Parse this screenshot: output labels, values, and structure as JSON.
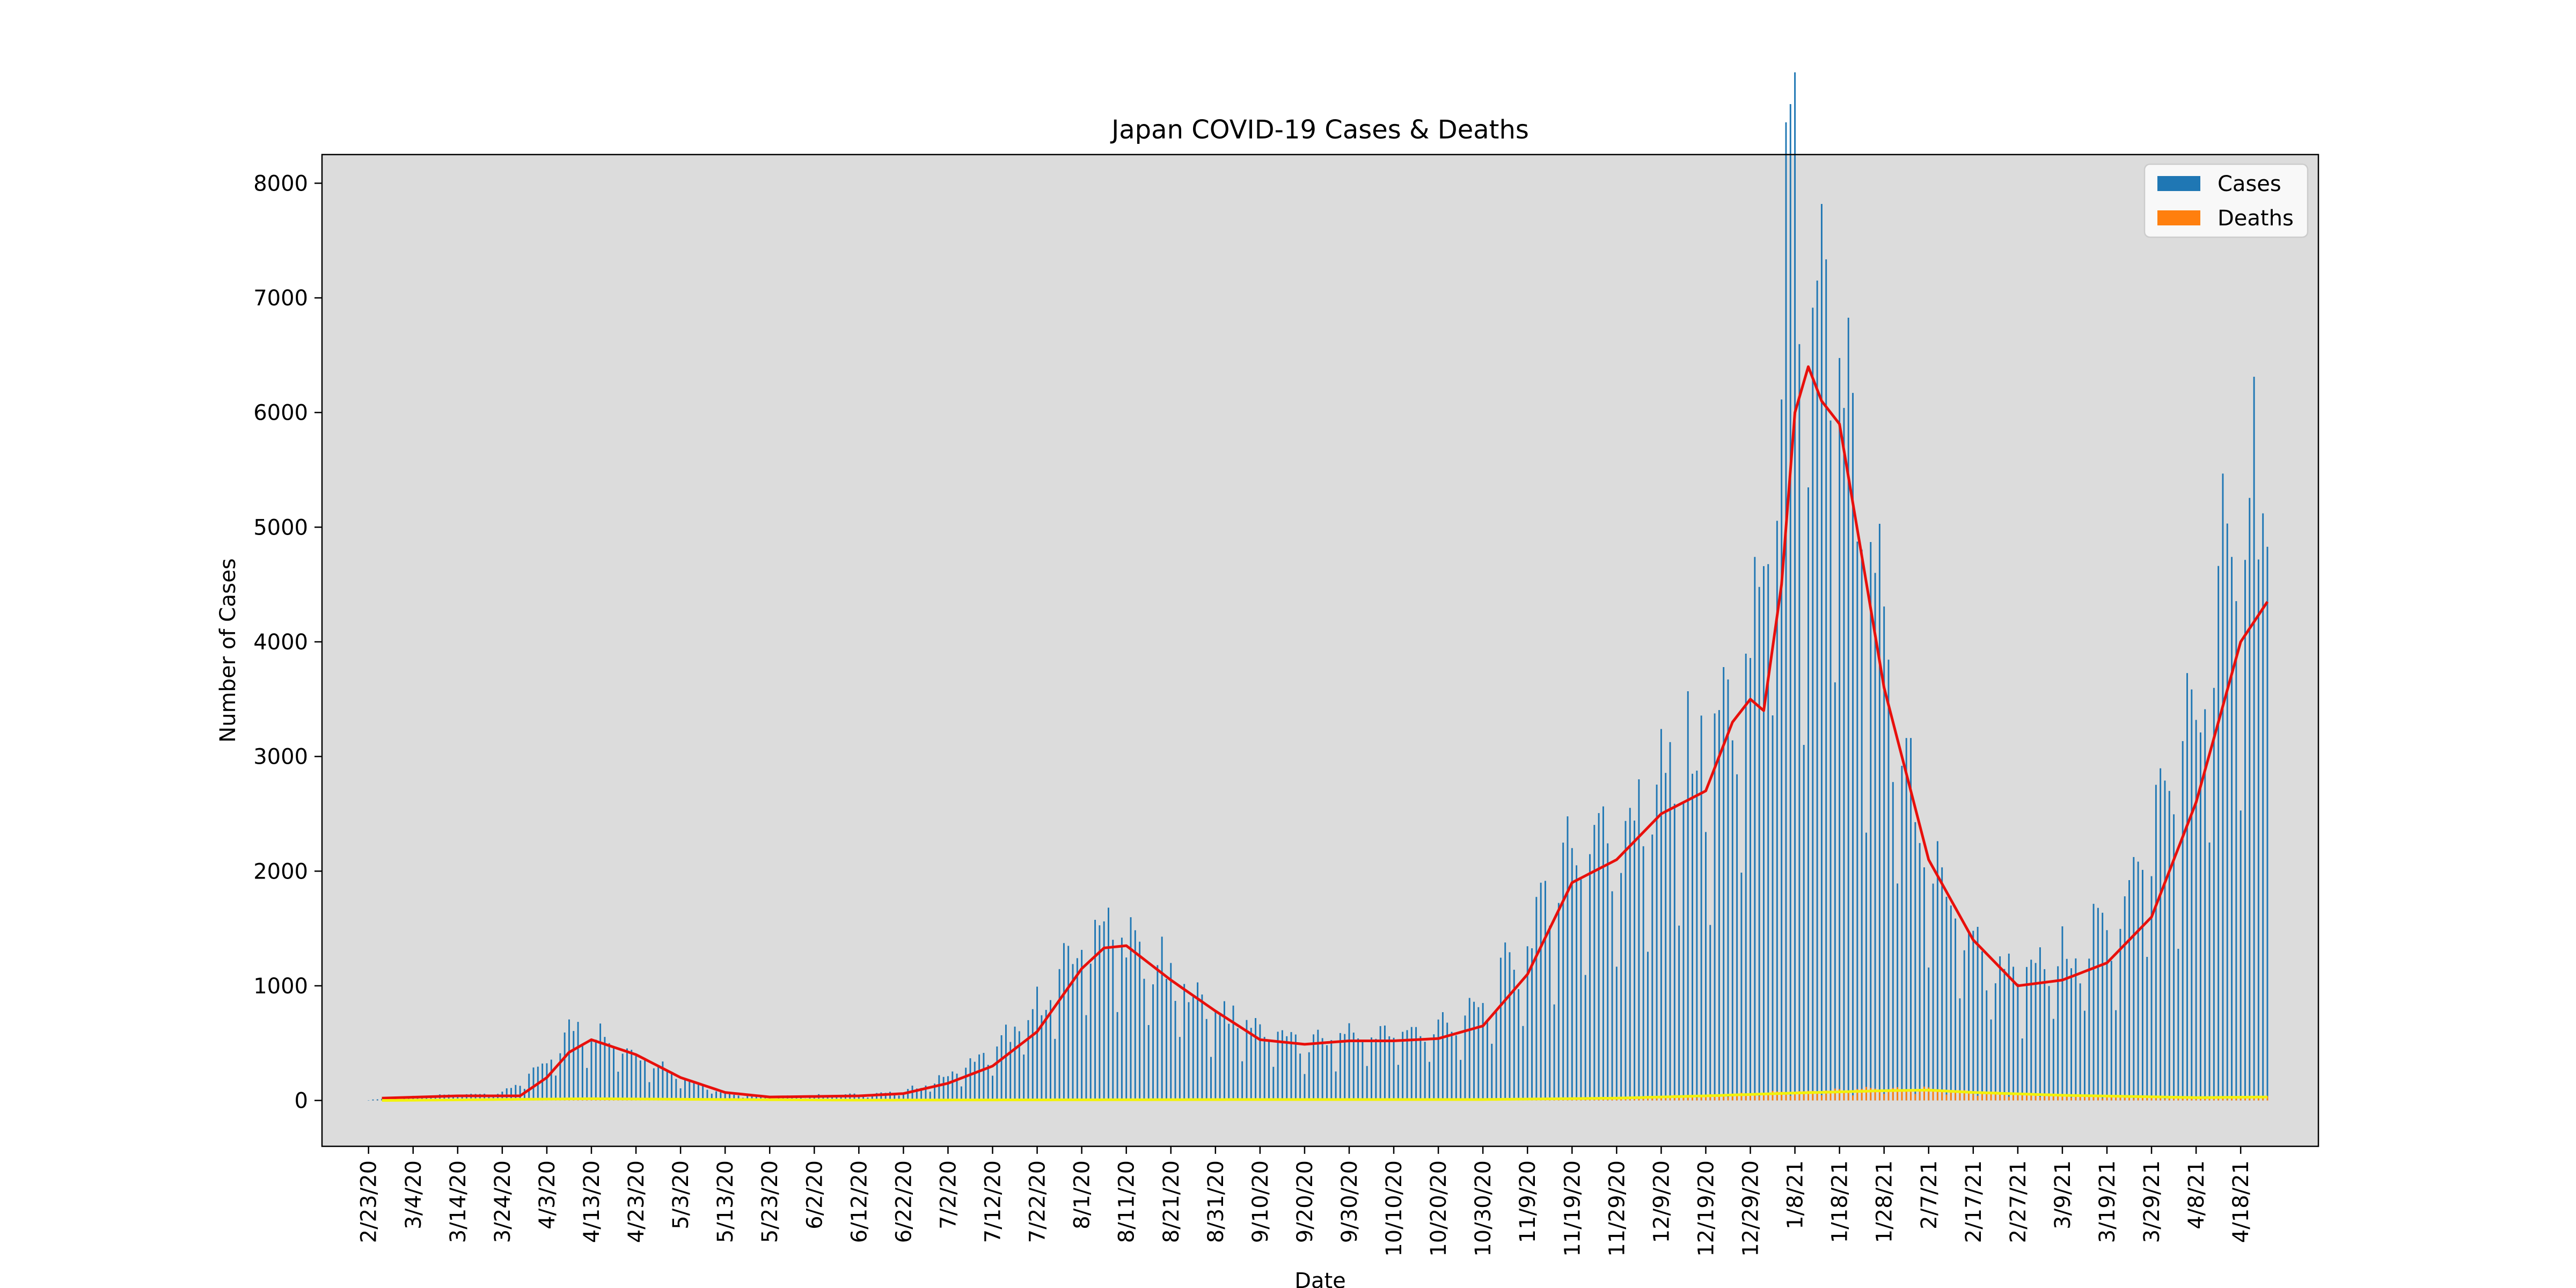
{
  "chart_data": {
    "type": "bar",
    "title": "Japan COVID-19 Cases & Deaths",
    "xlabel": "Date",
    "ylabel": "Number of Cases",
    "x_start": "2020-02-23",
    "x_end": "2021-04-24",
    "ylim": [
      -400,
      8250
    ],
    "yticks": [
      0,
      1000,
      2000,
      3000,
      4000,
      5000,
      6000,
      7000,
      8000
    ],
    "xtick_labels": [
      "2/23/20",
      "3/4/20",
      "3/14/20",
      "3/24/20",
      "4/3/20",
      "4/13/20",
      "4/23/20",
      "5/3/20",
      "5/13/20",
      "5/23/20",
      "6/2/20",
      "6/12/20",
      "6/22/20",
      "7/2/20",
      "7/12/20",
      "7/22/20",
      "8/1/20",
      "8/11/20",
      "8/21/20",
      "8/31/20",
      "9/10/20",
      "9/20/20",
      "9/30/20",
      "10/10/20",
      "10/20/20",
      "10/30/20",
      "11/9/20",
      "11/19/20",
      "11/29/20",
      "12/9/20",
      "12/19/20",
      "12/29/20",
      "1/8/21",
      "1/18/21",
      "1/28/21",
      "2/7/21",
      "2/17/21",
      "2/27/21",
      "3/9/21",
      "3/19/21",
      "3/29/21",
      "4/8/21",
      "4/18/21"
    ],
    "grid": false,
    "legend_position": "top-right",
    "legend": [
      {
        "label": "Cases",
        "color": "#1f77b4"
      },
      {
        "label": "Deaths",
        "color": "#ff7f0e"
      }
    ],
    "colors": {
      "plot_background": "#dcdcdc",
      "cases_bar": "#1f77b4",
      "deaths_bar": "#ff7f0e",
      "cases_rolling_line": "#e8100c",
      "deaths_rolling_line": "#f2f20c"
    },
    "series": [
      {
        "name": "Cases",
        "kind": "bar",
        "note": "daily values, piecewise-linear anchors (date, value) read from the chart",
        "points": [
          [
            "2020-02-23",
            5
          ],
          [
            "2020-03-04",
            30
          ],
          [
            "2020-03-14",
            50
          ],
          [
            "2020-03-24",
            60
          ],
          [
            "2020-04-03",
            300
          ],
          [
            "2020-04-10",
            650
          ],
          [
            "2020-04-13",
            550
          ],
          [
            "2020-04-23",
            400
          ],
          [
            "2020-05-03",
            200
          ],
          [
            "2020-05-13",
            60
          ],
          [
            "2020-05-23",
            30
          ],
          [
            "2020-06-02",
            40
          ],
          [
            "2020-06-12",
            50
          ],
          [
            "2020-06-22",
            70
          ],
          [
            "2020-07-02",
            200
          ],
          [
            "2020-07-12",
            400
          ],
          [
            "2020-07-22",
            750
          ],
          [
            "2020-08-01",
            1300
          ],
          [
            "2020-08-07",
            1500
          ],
          [
            "2020-08-11",
            1300
          ],
          [
            "2020-08-21",
            1000
          ],
          [
            "2020-08-31",
            750
          ],
          [
            "2020-09-10",
            600
          ],
          [
            "2020-09-20",
            450
          ],
          [
            "2020-09-30",
            550
          ],
          [
            "2020-10-10",
            550
          ],
          [
            "2020-10-20",
            600
          ],
          [
            "2020-10-30",
            750
          ],
          [
            "2020-11-09",
            1300
          ],
          [
            "2020-11-19",
            2100
          ],
          [
            "2020-11-29",
            2200
          ],
          [
            "2020-12-09",
            2600
          ],
          [
            "2020-12-19",
            2900
          ],
          [
            "2020-12-29",
            3500
          ],
          [
            "2021-01-06",
            6500
          ],
          [
            "2021-01-08",
            7800
          ],
          [
            "2021-01-10",
            5200
          ],
          [
            "2021-01-14",
            6800
          ],
          [
            "2021-01-18",
            5800
          ],
          [
            "2021-01-28",
            3600
          ],
          [
            "2021-02-07",
            2000
          ],
          [
            "2021-02-17",
            1300
          ],
          [
            "2021-02-27",
            1000
          ],
          [
            "2021-03-09",
            1200
          ],
          [
            "2021-03-19",
            1400
          ],
          [
            "2021-03-29",
            2200
          ],
          [
            "2021-04-08",
            3200
          ],
          [
            "2021-04-18",
            4800
          ],
          [
            "2021-04-24",
            5200
          ]
        ]
      },
      {
        "name": "Deaths",
        "kind": "bar",
        "note": "daily values, piecewise-linear anchors (date, value) read from the chart",
        "points": [
          [
            "2020-02-23",
            0
          ],
          [
            "2020-04-13",
            20
          ],
          [
            "2020-05-03",
            15
          ],
          [
            "2020-06-12",
            3
          ],
          [
            "2020-08-11",
            8
          ],
          [
            "2020-09-10",
            10
          ],
          [
            "2020-10-30",
            8
          ],
          [
            "2020-11-29",
            25
          ],
          [
            "2020-12-19",
            45
          ],
          [
            "2021-01-08",
            70
          ],
          [
            "2021-01-28",
            95
          ],
          [
            "2021-02-07",
            100
          ],
          [
            "2021-02-17",
            70
          ],
          [
            "2021-03-09",
            45
          ],
          [
            "2021-04-08",
            20
          ],
          [
            "2021-04-24",
            30
          ]
        ]
      },
      {
        "name": "Cases 7-day average",
        "kind": "line",
        "points": [
          [
            "2020-02-26",
            20
          ],
          [
            "2020-03-14",
            40
          ],
          [
            "2020-03-28",
            40
          ],
          [
            "2020-04-03",
            200
          ],
          [
            "2020-04-08",
            420
          ],
          [
            "2020-04-13",
            530
          ],
          [
            "2020-04-23",
            400
          ],
          [
            "2020-05-03",
            200
          ],
          [
            "2020-05-13",
            70
          ],
          [
            "2020-05-23",
            30
          ],
          [
            "2020-06-02",
            35
          ],
          [
            "2020-06-12",
            40
          ],
          [
            "2020-06-22",
            60
          ],
          [
            "2020-07-02",
            150
          ],
          [
            "2020-07-12",
            300
          ],
          [
            "2020-07-22",
            600
          ],
          [
            "2020-08-01",
            1150
          ],
          [
            "2020-08-06",
            1330
          ],
          [
            "2020-08-11",
            1350
          ],
          [
            "2020-08-21",
            1050
          ],
          [
            "2020-08-31",
            780
          ],
          [
            "2020-09-10",
            530
          ],
          [
            "2020-09-20",
            490
          ],
          [
            "2020-09-30",
            520
          ],
          [
            "2020-10-10",
            520
          ],
          [
            "2020-10-20",
            540
          ],
          [
            "2020-10-30",
            650
          ],
          [
            "2020-11-09",
            1100
          ],
          [
            "2020-11-19",
            1900
          ],
          [
            "2020-11-29",
            2100
          ],
          [
            "2020-12-09",
            2500
          ],
          [
            "2020-12-19",
            2700
          ],
          [
            "2020-12-25",
            3300
          ],
          [
            "2020-12-29",
            3500
          ],
          [
            "2021-01-01",
            3400
          ],
          [
            "2021-01-05",
            4500
          ],
          [
            "2021-01-08",
            6000
          ],
          [
            "2021-01-11",
            6400
          ],
          [
            "2021-01-14",
            6100
          ],
          [
            "2021-01-18",
            5900
          ],
          [
            "2021-01-28",
            3600
          ],
          [
            "2021-02-07",
            2100
          ],
          [
            "2021-02-17",
            1400
          ],
          [
            "2021-02-27",
            1000
          ],
          [
            "2021-03-09",
            1050
          ],
          [
            "2021-03-19",
            1200
          ],
          [
            "2021-03-29",
            1600
          ],
          [
            "2021-04-08",
            2600
          ],
          [
            "2021-04-18",
            4000
          ],
          [
            "2021-04-24",
            4350
          ]
        ]
      },
      {
        "name": "Deaths 7-day average",
        "kind": "line",
        "points": [
          [
            "2020-02-26",
            0
          ],
          [
            "2020-04-13",
            15
          ],
          [
            "2020-05-13",
            8
          ],
          [
            "2020-06-12",
            3
          ],
          [
            "2020-08-11",
            6
          ],
          [
            "2020-09-10",
            8
          ],
          [
            "2020-10-30",
            8
          ],
          [
            "2020-11-29",
            20
          ],
          [
            "2020-12-19",
            40
          ],
          [
            "2021-01-08",
            65
          ],
          [
            "2021-01-28",
            85
          ],
          [
            "2021-02-07",
            90
          ],
          [
            "2021-02-17",
            70
          ],
          [
            "2021-03-09",
            45
          ],
          [
            "2021-04-08",
            25
          ],
          [
            "2021-04-24",
            30
          ]
        ]
      }
    ]
  }
}
